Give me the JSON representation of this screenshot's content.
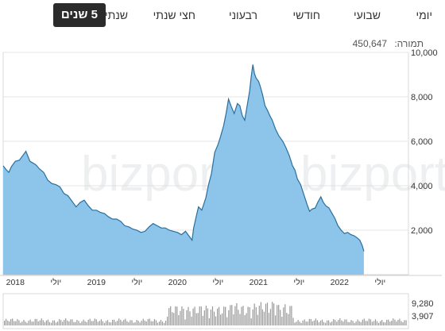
{
  "tabs": [
    {
      "label": "יומי",
      "active": false
    },
    {
      "label": "שבועי",
      "active": false
    },
    {
      "label": "חודשי",
      "active": false
    },
    {
      "label": "רבעוני",
      "active": false
    },
    {
      "label": "חצי שנתי",
      "active": false
    },
    {
      "label": "שנתי",
      "active": false
    },
    {
      "label": "5 שנים",
      "active": true
    }
  ],
  "turnover": {
    "label": "תמורה:",
    "value": "450,647"
  },
  "watermark": {
    "left": "bizportal",
    "right": "bizportal"
  },
  "colors": {
    "area_fill": "#8cc4ea",
    "line": "#2a6f9c",
    "volume_bar": "#999999",
    "grid": "#e6e6e6"
  },
  "chart_data": {
    "type": "area",
    "ylim": [
      0,
      10000
    ],
    "y_ticks": [
      "10,000",
      "8,000",
      "6,000",
      "4,000",
      "2,000"
    ],
    "x_tick_labels": [
      {
        "label": "2018",
        "x": 2018.0
      },
      {
        "label": "יולי",
        "x": 2018.5
      },
      {
        "label": "2019",
        "x": 2019.0
      },
      {
        "label": "יולי",
        "x": 2019.5
      },
      {
        "label": "2020",
        "x": 2020.0
      },
      {
        "label": "יולי",
        "x": 2020.5
      },
      {
        "label": "2021",
        "x": 2021.0
      },
      {
        "label": "יולי",
        "x": 2021.5
      },
      {
        "label": "2022",
        "x": 2022.0
      },
      {
        "label": "יולי",
        "x": 2022.5
      }
    ],
    "x_range": [
      2017.85,
      2022.85
    ],
    "series": [
      {
        "points": [
          [
            2017.85,
            4900
          ],
          [
            2017.88,
            4750
          ],
          [
            2017.92,
            4600
          ],
          [
            2017.95,
            4850
          ],
          [
            2018.0,
            5100
          ],
          [
            2018.05,
            5150
          ],
          [
            2018.1,
            5400
          ],
          [
            2018.13,
            5550
          ],
          [
            2018.18,
            5100
          ],
          [
            2018.25,
            4950
          ],
          [
            2018.3,
            4750
          ],
          [
            2018.35,
            4600
          ],
          [
            2018.4,
            4250
          ],
          [
            2018.45,
            4100
          ],
          [
            2018.5,
            4050
          ],
          [
            2018.55,
            3950
          ],
          [
            2018.6,
            3650
          ],
          [
            2018.65,
            3550
          ],
          [
            2018.7,
            3300
          ],
          [
            2018.75,
            3050
          ],
          [
            2018.8,
            3250
          ],
          [
            2018.85,
            3350
          ],
          [
            2018.9,
            3100
          ],
          [
            2018.95,
            2900
          ],
          [
            2019.0,
            2900
          ],
          [
            2019.05,
            2800
          ],
          [
            2019.1,
            2750
          ],
          [
            2019.15,
            2600
          ],
          [
            2019.2,
            2500
          ],
          [
            2019.25,
            2500
          ],
          [
            2019.3,
            2400
          ],
          [
            2019.35,
            2200
          ],
          [
            2019.4,
            2150
          ],
          [
            2019.45,
            2050
          ],
          [
            2019.5,
            2000
          ],
          [
            2019.55,
            1900
          ],
          [
            2019.6,
            1950
          ],
          [
            2019.65,
            2150
          ],
          [
            2019.7,
            2300
          ],
          [
            2019.75,
            2200
          ],
          [
            2019.8,
            2100
          ],
          [
            2019.85,
            2100
          ],
          [
            2019.9,
            2000
          ],
          [
            2019.95,
            1950
          ],
          [
            2020.0,
            1900
          ],
          [
            2020.05,
            1800
          ],
          [
            2020.1,
            1950
          ],
          [
            2020.15,
            1700
          ],
          [
            2020.18,
            1550
          ],
          [
            2020.2,
            2100
          ],
          [
            2020.23,
            2600
          ],
          [
            2020.26,
            3050
          ],
          [
            2020.3,
            2900
          ],
          [
            2020.35,
            3450
          ],
          [
            2020.38,
            4000
          ],
          [
            2020.42,
            4550
          ],
          [
            2020.46,
            5500
          ],
          [
            2020.5,
            5850
          ],
          [
            2020.53,
            6200
          ],
          [
            2020.57,
            6700
          ],
          [
            2020.6,
            7250
          ],
          [
            2020.63,
            7900
          ],
          [
            2020.66,
            7600
          ],
          [
            2020.7,
            7250
          ],
          [
            2020.74,
            7700
          ],
          [
            2020.77,
            7600
          ],
          [
            2020.8,
            7150
          ],
          [
            2020.83,
            6950
          ],
          [
            2020.86,
            7600
          ],
          [
            2020.89,
            8250
          ],
          [
            2020.91,
            8900
          ],
          [
            2020.93,
            9450
          ],
          [
            2020.95,
            9050
          ],
          [
            2020.97,
            8850
          ],
          [
            2021.0,
            8700
          ],
          [
            2021.02,
            8500
          ],
          [
            2021.05,
            8100
          ],
          [
            2021.08,
            7600
          ],
          [
            2021.11,
            7400
          ],
          [
            2021.14,
            7150
          ],
          [
            2021.17,
            6950
          ],
          [
            2021.21,
            6550
          ],
          [
            2021.25,
            6250
          ],
          [
            2021.3,
            6000
          ],
          [
            2021.34,
            5700
          ],
          [
            2021.38,
            5350
          ],
          [
            2021.42,
            4900
          ],
          [
            2021.45,
            4700
          ],
          [
            2021.48,
            4300
          ],
          [
            2021.52,
            4050
          ],
          [
            2021.56,
            3600
          ],
          [
            2021.6,
            3150
          ],
          [
            2021.63,
            2850
          ],
          [
            2021.66,
            2950
          ],
          [
            2021.7,
            3000
          ],
          [
            2021.73,
            3250
          ],
          [
            2021.77,
            3500
          ],
          [
            2021.8,
            3250
          ],
          [
            2021.83,
            3100
          ],
          [
            2021.87,
            3000
          ],
          [
            2021.9,
            2800
          ],
          [
            2021.94,
            2550
          ],
          [
            2021.98,
            2200
          ],
          [
            2022.02,
            2000
          ],
          [
            2022.06,
            1850
          ],
          [
            2022.1,
            1900
          ],
          [
            2022.14,
            1800
          ],
          [
            2022.18,
            1750
          ],
          [
            2022.22,
            1650
          ],
          [
            2022.25,
            1550
          ],
          [
            2022.28,
            1300
          ],
          [
            2022.3,
            1050
          ]
        ]
      }
    ],
    "volume": {
      "y_ticks": [
        "9,280",
        "3,907"
      ]
    }
  }
}
